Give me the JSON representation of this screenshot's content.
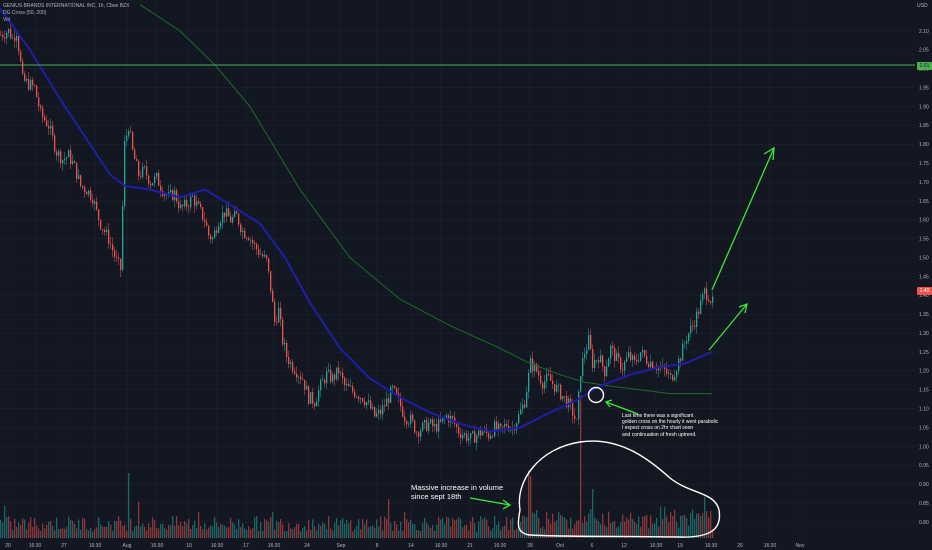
{
  "header": {
    "symbol_line": "GENIUS BRANDS INTERNATIONAL INC, 1h, Cboe BZX",
    "indicator_line": "DG Cross (50, 200)",
    "volume_label": "Vol",
    "currency": "USD"
  },
  "colors": {
    "background": "#131722",
    "grid": "#1f2330",
    "up_candle": "#26a69a",
    "down_candle": "#ef5350",
    "ma50": "#1e1ea8",
    "ma200": "#1e6b2a",
    "hline": "#4caf50",
    "annotation": "#39e639",
    "price_tag": "#ef5350",
    "hline_tag": "#4caf50"
  },
  "hline_tag": "2.01",
  "price_tag": "1.40",
  "annotations": {
    "cross_note": [
      "Last time there was a significant",
      "golden cross on the hourly it went parabolic",
      "I expect cross on 2hr chart soon",
      "and continuation of fresh uptrend."
    ],
    "volume_note": [
      "Massive increase in volume",
      "since sept 18th"
    ]
  },
  "chart_data": {
    "type": "candlestick",
    "title": "GENIUS BRANDS INTERNATIONAL INC, 1h, Cboe BZX",
    "interval": "1h",
    "y_axis": {
      "side": "right",
      "ylim": [
        0.77,
        2.17
      ],
      "ticks": [
        "2.10",
        "2.05",
        "2.00",
        "1.95",
        "1.90",
        "1.85",
        "1.80",
        "1.75",
        "1.70",
        "1.65",
        "1.60",
        "1.55",
        "1.50",
        "1.45",
        "1.40",
        "1.35",
        "1.30",
        "1.25",
        "1.20",
        "1.15",
        "1.10",
        "1.05",
        "1.00",
        "0.95",
        "0.90",
        "0.85",
        "0.80"
      ]
    },
    "x_axis": {
      "ticks": [
        "20",
        "16:30",
        "27",
        "16:30",
        "Aug",
        "16:30",
        "10",
        "16:30",
        "17",
        "16:30",
        "24",
        "Sep",
        "8",
        "14",
        "16:30",
        "21",
        "16:30",
        "28",
        "Oct",
        "6",
        "12",
        "16:30",
        "19",
        "16:30",
        "26",
        "16:30",
        "Nov"
      ]
    },
    "horizontal_line": 2.01,
    "last_price": 1.4,
    "close_path": [
      {
        "x": 0,
        "y": 2.09
      },
      {
        "x": 8,
        "y": 2.1
      },
      {
        "x": 12,
        "y": 2.08
      },
      {
        "x": 16,
        "y": 2.1
      },
      {
        "x": 22,
        "y": 1.97
      },
      {
        "x": 28,
        "y": 1.96
      },
      {
        "x": 34,
        "y": 1.95
      },
      {
        "x": 40,
        "y": 1.88
      },
      {
        "x": 48,
        "y": 1.85
      },
      {
        "x": 56,
        "y": 1.78
      },
      {
        "x": 62,
        "y": 1.76
      },
      {
        "x": 68,
        "y": 1.77
      },
      {
        "x": 74,
        "y": 1.74
      },
      {
        "x": 80,
        "y": 1.69
      },
      {
        "x": 86,
        "y": 1.68
      },
      {
        "x": 92,
        "y": 1.66
      },
      {
        "x": 96,
        "y": 1.62
      },
      {
        "x": 100,
        "y": 1.59
      },
      {
        "x": 104,
        "y": 1.57
      },
      {
        "x": 108,
        "y": 1.55
      },
      {
        "x": 112,
        "y": 1.52
      },
      {
        "x": 116,
        "y": 1.49
      },
      {
        "x": 120,
        "y": 1.47
      },
      {
        "x": 124,
        "y": 1.8
      },
      {
        "x": 128,
        "y": 1.85
      },
      {
        "x": 132,
        "y": 1.78
      },
      {
        "x": 138,
        "y": 1.72
      },
      {
        "x": 144,
        "y": 1.73
      },
      {
        "x": 150,
        "y": 1.7
      },
      {
        "x": 156,
        "y": 1.71
      },
      {
        "x": 162,
        "y": 1.68
      },
      {
        "x": 168,
        "y": 1.66
      },
      {
        "x": 174,
        "y": 1.67
      },
      {
        "x": 180,
        "y": 1.63
      },
      {
        "x": 186,
        "y": 1.64
      },
      {
        "x": 192,
        "y": 1.66
      },
      {
        "x": 198,
        "y": 1.63
      },
      {
        "x": 204,
        "y": 1.6
      },
      {
        "x": 208,
        "y": 1.56
      },
      {
        "x": 212,
        "y": 1.55
      },
      {
        "x": 218,
        "y": 1.6
      },
      {
        "x": 224,
        "y": 1.62
      },
      {
        "x": 230,
        "y": 1.6
      },
      {
        "x": 236,
        "y": 1.61
      },
      {
        "x": 242,
        "y": 1.57
      },
      {
        "x": 248,
        "y": 1.56
      },
      {
        "x": 254,
        "y": 1.53
      },
      {
        "x": 260,
        "y": 1.51
      },
      {
        "x": 266,
        "y": 1.49
      },
      {
        "x": 270,
        "y": 1.42
      },
      {
        "x": 274,
        "y": 1.33
      },
      {
        "x": 278,
        "y": 1.36
      },
      {
        "x": 282,
        "y": 1.28
      },
      {
        "x": 286,
        "y": 1.24
      },
      {
        "x": 290,
        "y": 1.22
      },
      {
        "x": 296,
        "y": 1.2
      },
      {
        "x": 302,
        "y": 1.18
      },
      {
        "x": 308,
        "y": 1.13
      },
      {
        "x": 314,
        "y": 1.12
      },
      {
        "x": 320,
        "y": 1.16
      },
      {
        "x": 326,
        "y": 1.19
      },
      {
        "x": 332,
        "y": 1.18
      },
      {
        "x": 338,
        "y": 1.2
      },
      {
        "x": 344,
        "y": 1.16
      },
      {
        "x": 350,
        "y": 1.15
      },
      {
        "x": 356,
        "y": 1.14
      },
      {
        "x": 362,
        "y": 1.13
      },
      {
        "x": 368,
        "y": 1.11
      },
      {
        "x": 374,
        "y": 1.08
      },
      {
        "x": 380,
        "y": 1.09
      },
      {
        "x": 386,
        "y": 1.12
      },
      {
        "x": 392,
        "y": 1.15
      },
      {
        "x": 398,
        "y": 1.12
      },
      {
        "x": 404,
        "y": 1.08
      },
      {
        "x": 410,
        "y": 1.07
      },
      {
        "x": 416,
        "y": 1.04
      },
      {
        "x": 422,
        "y": 1.05
      },
      {
        "x": 428,
        "y": 1.06
      },
      {
        "x": 434,
        "y": 1.05
      },
      {
        "x": 440,
        "y": 1.06
      },
      {
        "x": 446,
        "y": 1.08
      },
      {
        "x": 452,
        "y": 1.07
      },
      {
        "x": 458,
        "y": 1.04
      },
      {
        "x": 464,
        "y": 1.03
      },
      {
        "x": 470,
        "y": 1.02
      },
      {
        "x": 476,
        "y": 1.03
      },
      {
        "x": 482,
        "y": 1.04
      },
      {
        "x": 488,
        "y": 1.03
      },
      {
        "x": 494,
        "y": 1.05
      },
      {
        "x": 500,
        "y": 1.04
      },
      {
        "x": 506,
        "y": 1.06
      },
      {
        "x": 512,
        "y": 1.05
      },
      {
        "x": 518,
        "y": 1.08
      },
      {
        "x": 524,
        "y": 1.12
      },
      {
        "x": 530,
        "y": 1.22
      },
      {
        "x": 536,
        "y": 1.2
      },
      {
        "x": 542,
        "y": 1.17
      },
      {
        "x": 548,
        "y": 1.18
      },
      {
        "x": 554,
        "y": 1.16
      },
      {
        "x": 560,
        "y": 1.14
      },
      {
        "x": 566,
        "y": 1.12
      },
      {
        "x": 572,
        "y": 1.09
      },
      {
        "x": 576,
        "y": 1.06
      },
      {
        "x": 580,
        "y": 1.2
      },
      {
        "x": 584,
        "y": 1.25
      },
      {
        "x": 588,
        "y": 1.28
      },
      {
        "x": 592,
        "y": 1.22
      },
      {
        "x": 598,
        "y": 1.24
      },
      {
        "x": 604,
        "y": 1.2
      },
      {
        "x": 610,
        "y": 1.26
      },
      {
        "x": 616,
        "y": 1.23
      },
      {
        "x": 622,
        "y": 1.21
      },
      {
        "x": 628,
        "y": 1.24
      },
      {
        "x": 634,
        "y": 1.22
      },
      {
        "x": 640,
        "y": 1.25
      },
      {
        "x": 646,
        "y": 1.23
      },
      {
        "x": 652,
        "y": 1.22
      },
      {
        "x": 658,
        "y": 1.21
      },
      {
        "x": 664,
        "y": 1.2
      },
      {
        "x": 670,
        "y": 1.18
      },
      {
        "x": 674,
        "y": 1.2
      },
      {
        "x": 680,
        "y": 1.24
      },
      {
        "x": 686,
        "y": 1.29
      },
      {
        "x": 692,
        "y": 1.32
      },
      {
        "x": 698,
        "y": 1.36
      },
      {
        "x": 704,
        "y": 1.41
      },
      {
        "x": 708,
        "y": 1.4
      },
      {
        "x": 712,
        "y": 1.38
      }
    ],
    "ma50": [
      {
        "x": 0,
        "y": 2.16
      },
      {
        "x": 30,
        "y": 2.05
      },
      {
        "x": 60,
        "y": 1.92
      },
      {
        "x": 90,
        "y": 1.8
      },
      {
        "x": 110,
        "y": 1.72
      },
      {
        "x": 125,
        "y": 1.69
      },
      {
        "x": 150,
        "y": 1.68
      },
      {
        "x": 180,
        "y": 1.66
      },
      {
        "x": 205,
        "y": 1.68
      },
      {
        "x": 230,
        "y": 1.64
      },
      {
        "x": 260,
        "y": 1.59
      },
      {
        "x": 285,
        "y": 1.5
      },
      {
        "x": 310,
        "y": 1.38
      },
      {
        "x": 340,
        "y": 1.26
      },
      {
        "x": 370,
        "y": 1.18
      },
      {
        "x": 400,
        "y": 1.13
      },
      {
        "x": 430,
        "y": 1.09
      },
      {
        "x": 460,
        "y": 1.06
      },
      {
        "x": 490,
        "y": 1.04
      },
      {
        "x": 520,
        "y": 1.05
      },
      {
        "x": 550,
        "y": 1.09
      },
      {
        "x": 575,
        "y": 1.12
      },
      {
        "x": 600,
        "y": 1.16
      },
      {
        "x": 630,
        "y": 1.19
      },
      {
        "x": 660,
        "y": 1.21
      },
      {
        "x": 685,
        "y": 1.22
      },
      {
        "x": 712,
        "y": 1.25
      }
    ],
    "ma200": [
      {
        "x": 140,
        "y": 2.17
      },
      {
        "x": 180,
        "y": 2.1
      },
      {
        "x": 215,
        "y": 2.01
      },
      {
        "x": 250,
        "y": 1.9
      },
      {
        "x": 300,
        "y": 1.68
      },
      {
        "x": 350,
        "y": 1.5
      },
      {
        "x": 400,
        "y": 1.39
      },
      {
        "x": 450,
        "y": 1.32
      },
      {
        "x": 500,
        "y": 1.26
      },
      {
        "x": 530,
        "y": 1.22
      },
      {
        "x": 560,
        "y": 1.19
      },
      {
        "x": 585,
        "y": 1.17
      },
      {
        "x": 610,
        "y": 1.16
      },
      {
        "x": 640,
        "y": 1.15
      },
      {
        "x": 670,
        "y": 1.14
      },
      {
        "x": 690,
        "y": 1.14
      },
      {
        "x": 712,
        "y": 1.14
      }
    ],
    "volume_spikes": [
      {
        "x": 4,
        "v": 0.25
      },
      {
        "x": 128,
        "v": 0.5
      },
      {
        "x": 138,
        "v": 0.28
      },
      {
        "x": 198,
        "v": 0.2
      },
      {
        "x": 272,
        "v": 0.2
      },
      {
        "x": 388,
        "v": 0.3
      },
      {
        "x": 404,
        "v": 0.2
      },
      {
        "x": 529,
        "v": 0.45
      },
      {
        "x": 580,
        "v": 1.0
      },
      {
        "x": 592,
        "v": 0.3
      },
      {
        "x": 704,
        "v": 0.28
      }
    ]
  }
}
